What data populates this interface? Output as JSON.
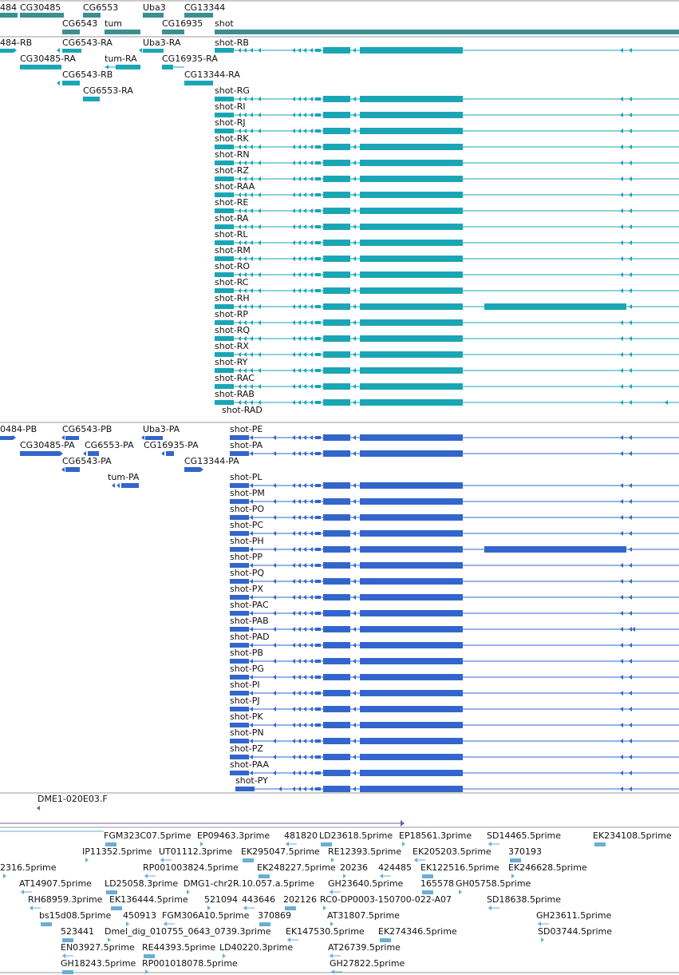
{
  "colors": {
    "gene": "#3a8f91",
    "mrna": "#1aa6b5",
    "protein": "#3366cc",
    "est": "#6aaed6",
    "divider": "#999999",
    "other": "#7a5aa6"
  },
  "tracks": {
    "genes": [
      "484",
      "CG30485",
      "CG6553",
      "Uba3",
      "CG13344",
      "CG6543",
      "tum",
      "CG16935",
      "shot"
    ],
    "mrnas": [
      "484-RB",
      "CG6543-RA",
      "Uba3-RA",
      "shot-RB",
      "CG30485-RA",
      "tum-RA",
      "CG16935-RA",
      "CG6543-RB",
      "CG13344-RA",
      "CG6553-RA",
      "shot-RG",
      "shot-RI",
      "shot-RJ",
      "shot-RK",
      "shot-RN",
      "shot-RZ",
      "shot-RAA",
      "shot-RE",
      "shot-RA",
      "shot-RL",
      "shot-RM",
      "shot-RO",
      "shot-RC",
      "shot-RH",
      "shot-RP",
      "shot-RQ",
      "shot-RX",
      "shot-RY",
      "shot-RAC",
      "shot-RAB",
      "shot-RAD"
    ],
    "proteins": [
      "0484-PB",
      "CG6543-PB",
      "Uba3-PA",
      "shot-PE",
      "CG30485-PA",
      "CG6553-PA",
      "CG16935-PA",
      "shot-PA",
      "CG6543-PA",
      "CG13344-PA",
      "tum-PA",
      "shot-PL",
      "shot-PM",
      "shot-PO",
      "shot-PC",
      "shot-PH",
      "shot-PP",
      "shot-PQ",
      "shot-PX",
      "shot-PAC",
      "shot-PAB",
      "shot-PAD",
      "shot-PB",
      "shot-PG",
      "shot-PI",
      "shot-PJ",
      "shot-PK",
      "shot-PN",
      "shot-PZ",
      "shot-PAA",
      "shot-PY"
    ],
    "other": [
      "DME1-020E03.F"
    ],
    "ests": [
      "FGM323C07.5prime",
      "EP09463.3prime",
      "481820",
      "LD23618.5prime",
      "EP18561.3prime",
      "SD14465.5prime",
      "EK234108.5prime",
      "IP11352.5prime",
      "UT01112.3prime",
      "EK295047.5prime",
      "RE12393.5prime",
      "EK205203.5prime",
      "370193",
      "2316.5prime",
      "RP001003824.5prime",
      "EK248227.5prime",
      "20236",
      "424485",
      "EK122516.5prime",
      "EK246628.5prime",
      "AT14907.5prime",
      "LD25058.3prime",
      "DMG1-chr2R.10.057.a.5prime",
      "GH23640.5prime",
      "165578",
      "GH05758.5prime",
      "RH68959.3prime",
      "EK136444.5prime",
      "521094",
      "443646",
      "202126",
      "RC0-DP0003-150700-022-A07",
      "SD18638.5prime",
      "bs15d08.5prime",
      "450913",
      "FGM306A10.5prime",
      "370869",
      "AT31807.5prime",
      "GH23611.5prime",
      "523441",
      "Dmel_dig_010755_0643_0739.3prime",
      "EK147530.5prime",
      "EK274346.5prime",
      "SD03744.5prime",
      "EN03927.5prime",
      "RE44393.5prime",
      "LD40220.3prime",
      "AT26739.5prime",
      "GH18243.5prime",
      "RP001018078.5prime",
      "GH27822.5prime"
    ]
  }
}
